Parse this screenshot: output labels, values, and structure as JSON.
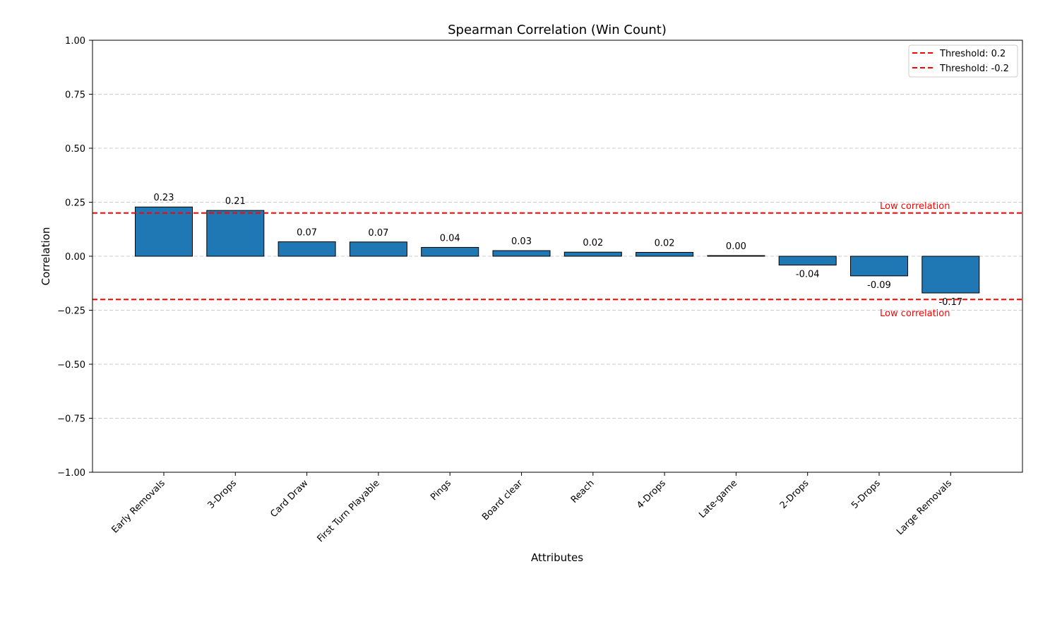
{
  "chart_data": {
    "type": "bar",
    "title": "Spearman Correlation (Win Count)",
    "xlabel": "Attributes",
    "ylabel": "Correlation",
    "ylim": [
      -1.0,
      1.0
    ],
    "yticks": [
      "1.00",
      "0.75",
      "0.50",
      "0.25",
      "0.00",
      "−0.25",
      "−0.50",
      "−0.75",
      "−1.00"
    ],
    "ytick_values": [
      1.0,
      0.75,
      0.5,
      0.25,
      0.0,
      -0.25,
      -0.5,
      -0.75,
      -1.0
    ],
    "categories": [
      "Early Removals",
      "3-Drops",
      "Card Draw",
      "First Turn Playable",
      "Pings",
      "Board clear",
      "Reach",
      "4-Drops",
      "Late-game",
      "2-Drops",
      "5-Drops",
      "Large Removals"
    ],
    "values": [
      0.228,
      0.212,
      0.067,
      0.066,
      0.041,
      0.026,
      0.019,
      0.018,
      0.003,
      -0.041,
      -0.091,
      -0.17
    ],
    "value_labels": [
      "0.23",
      "0.21",
      "0.07",
      "0.07",
      "0.04",
      "0.03",
      "0.02",
      "0.02",
      "0.00",
      "-0.04",
      "-0.09",
      "-0.17"
    ],
    "grid": "y, dashed",
    "bar_color": "#1f77b4",
    "thresholds": [
      {
        "value": 0.2,
        "legend": "Threshold: 0.2",
        "annotation": "Low correlation",
        "color": "#ff0000"
      },
      {
        "value": -0.2,
        "legend": "Threshold: -0.2",
        "annotation": "Low correlation",
        "color": "#ff0000"
      }
    ],
    "legend_position": "top-right"
  }
}
